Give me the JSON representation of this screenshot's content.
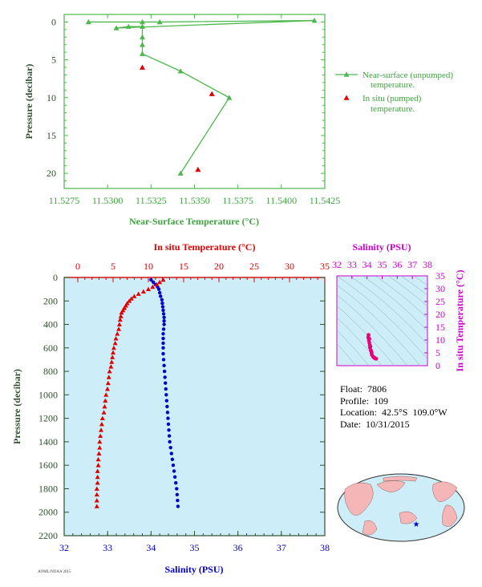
{
  "colors": {
    "green": "#4cb84c",
    "green_text": "#3fa33f",
    "axis_dark": "#2f4f2f",
    "red": "#e00000",
    "blue": "#0000cc",
    "magenta": "#cc00cc",
    "pink": "#e8007a",
    "panel_bg": "#cdeef8",
    "land": "#f4b6b6",
    "ocean": "#cdeef8"
  },
  "info": {
    "float": "Float:  7806",
    "profile": "Profile:  109",
    "location": "Location:  42.5°S  109.0°W",
    "date": "Date:  10/31/2015"
  },
  "chart_data": [
    {
      "type": "line",
      "name": "near-surface",
      "xlabel": "Near-Surface Temperature (°C)",
      "ylabel": "Pressure (decibar)",
      "xlim": [
        11.5275,
        11.5425
      ],
      "ylim": [
        22,
        -1
      ],
      "xticks": [
        "11.5275",
        "11.5300",
        "11.5325",
        "11.5350",
        "11.5375",
        "11.5400",
        "11.5425"
      ],
      "yticks": [
        "0",
        "5",
        "10",
        "15",
        "20"
      ],
      "series": [
        {
          "name": "Near-surface (unpumped) temperature.",
          "marker": "triangle",
          "points": [
            [
              11.5289,
              0
            ],
            [
              11.532,
              0
            ],
            [
              11.533,
              0
            ],
            [
              11.5419,
              -0.2
            ],
            [
              11.5305,
              0.8
            ],
            [
              11.5312,
              0.6
            ],
            [
              11.532,
              0.6
            ],
            [
              11.532,
              2
            ],
            [
              11.532,
              3
            ],
            [
              11.532,
              4.2
            ],
            [
              11.5342,
              6.5
            ],
            [
              11.537,
              10
            ],
            [
              11.5342,
              20
            ]
          ]
        },
        {
          "name": "In situ (pumped) temperature.",
          "marker": "triangle",
          "points": [
            [
              11.532,
              6
            ],
            [
              11.536,
              9.5
            ],
            [
              11.5352,
              19.5
            ]
          ]
        }
      ],
      "legend": {
        "placement": "right"
      }
    },
    {
      "type": "scatter",
      "name": "profile",
      "title_top": "In situ Temperature (°C)",
      "xlabel": "Salinity (PSU)",
      "ylabel": "Pressure (decibar)",
      "temp_lim": [
        0,
        35
      ],
      "sal_lim": [
        32,
        38
      ],
      "ylim": [
        2200,
        0
      ],
      "temp_ticks": [
        "0",
        "5",
        "10",
        "15",
        "20",
        "25",
        "30",
        "35"
      ],
      "sal_ticks": [
        "32",
        "33",
        "34",
        "35",
        "36",
        "37",
        "38"
      ],
      "yticks": [
        "0",
        "200",
        "400",
        "600",
        "800",
        "1000",
        "1200",
        "1400",
        "1600",
        "1800",
        "2000",
        "2200"
      ],
      "temperature": [
        [
          12.1,
          20
        ],
        [
          11.6,
          40
        ],
        [
          11.2,
          60
        ],
        [
          10.6,
          80
        ],
        [
          10.0,
          100
        ],
        [
          9.3,
          120
        ],
        [
          8.6,
          140
        ],
        [
          8.0,
          160
        ],
        [
          7.6,
          180
        ],
        [
          7.3,
          200
        ],
        [
          7.0,
          220
        ],
        [
          6.8,
          240
        ],
        [
          6.6,
          260
        ],
        [
          6.4,
          280
        ],
        [
          6.2,
          300
        ],
        [
          6.1,
          330
        ],
        [
          6.0,
          360
        ],
        [
          5.9,
          400
        ],
        [
          5.8,
          440
        ],
        [
          5.6,
          480
        ],
        [
          5.4,
          520
        ],
        [
          5.3,
          560
        ],
        [
          5.1,
          600
        ],
        [
          5.0,
          640
        ],
        [
          4.9,
          680
        ],
        [
          4.8,
          720
        ],
        [
          4.7,
          760
        ],
        [
          4.5,
          800
        ],
        [
          4.4,
          850
        ],
        [
          4.3,
          900
        ],
        [
          4.2,
          950
        ],
        [
          4.0,
          1000
        ],
        [
          3.9,
          1050
        ],
        [
          3.8,
          1100
        ],
        [
          3.7,
          1150
        ],
        [
          3.5,
          1200
        ],
        [
          3.4,
          1250
        ],
        [
          3.3,
          1300
        ],
        [
          3.2,
          1350
        ],
        [
          3.1,
          1400
        ],
        [
          3.1,
          1450
        ],
        [
          3.0,
          1500
        ],
        [
          2.9,
          1550
        ],
        [
          2.9,
          1600
        ],
        [
          2.8,
          1650
        ],
        [
          2.8,
          1700
        ],
        [
          2.8,
          1750
        ],
        [
          2.7,
          1800
        ],
        [
          2.7,
          1850
        ],
        [
          2.7,
          1900
        ],
        [
          2.7,
          1950
        ]
      ],
      "salinity": [
        [
          34.0,
          20
        ],
        [
          34.05,
          40
        ],
        [
          34.1,
          60
        ],
        [
          34.15,
          80
        ],
        [
          34.18,
          100
        ],
        [
          34.2,
          130
        ],
        [
          34.22,
          160
        ],
        [
          34.25,
          190
        ],
        [
          34.26,
          220
        ],
        [
          34.27,
          250
        ],
        [
          34.28,
          280
        ],
        [
          34.29,
          310
        ],
        [
          34.3,
          340
        ],
        [
          34.3,
          370
        ],
        [
          34.3,
          400
        ],
        [
          34.29,
          440
        ],
        [
          34.28,
          480
        ],
        [
          34.28,
          520
        ],
        [
          34.28,
          560
        ],
        [
          34.28,
          600
        ],
        [
          34.28,
          650
        ],
        [
          34.29,
          700
        ],
        [
          34.3,
          750
        ],
        [
          34.31,
          800
        ],
        [
          34.32,
          850
        ],
        [
          34.33,
          900
        ],
        [
          34.34,
          950
        ],
        [
          34.35,
          1000
        ],
        [
          34.36,
          1050
        ],
        [
          34.37,
          1100
        ],
        [
          34.38,
          1150
        ],
        [
          34.39,
          1200
        ],
        [
          34.4,
          1250
        ],
        [
          34.41,
          1300
        ],
        [
          34.42,
          1350
        ],
        [
          34.43,
          1400
        ],
        [
          34.45,
          1450
        ],
        [
          34.47,
          1500
        ],
        [
          34.49,
          1550
        ],
        [
          34.51,
          1600
        ],
        [
          34.53,
          1650
        ],
        [
          34.55,
          1700
        ],
        [
          34.57,
          1750
        ],
        [
          34.59,
          1800
        ],
        [
          34.6,
          1850
        ],
        [
          34.61,
          1900
        ],
        [
          34.62,
          1950
        ]
      ]
    },
    {
      "type": "scatter",
      "name": "ts-diagram",
      "title": "Salinity (PSU)",
      "ylabel": "In situ Temperature (°C)",
      "xlim": [
        32,
        38
      ],
      "ylim": [
        0,
        35
      ],
      "xticks": [
        "32",
        "33",
        "34",
        "35",
        "36",
        "37",
        "38"
      ],
      "yticks": [
        "0",
        "5",
        "10",
        "15",
        "20",
        "25",
        "30",
        "35"
      ],
      "points": [
        [
          34.1,
          12
        ],
        [
          34.08,
          11
        ],
        [
          34.12,
          10
        ],
        [
          34.15,
          9
        ],
        [
          34.18,
          8
        ],
        [
          34.2,
          7
        ],
        [
          34.25,
          6
        ],
        [
          34.3,
          5
        ],
        [
          34.32,
          4.2
        ],
        [
          34.4,
          3.5
        ],
        [
          34.5,
          3
        ],
        [
          34.55,
          2.8
        ],
        [
          34.6,
          2.7
        ],
        [
          34.15,
          10.5
        ],
        [
          34.22,
          7.5
        ],
        [
          34.28,
          5.5
        ],
        [
          34.45,
          3.2
        ]
      ]
    }
  ]
}
